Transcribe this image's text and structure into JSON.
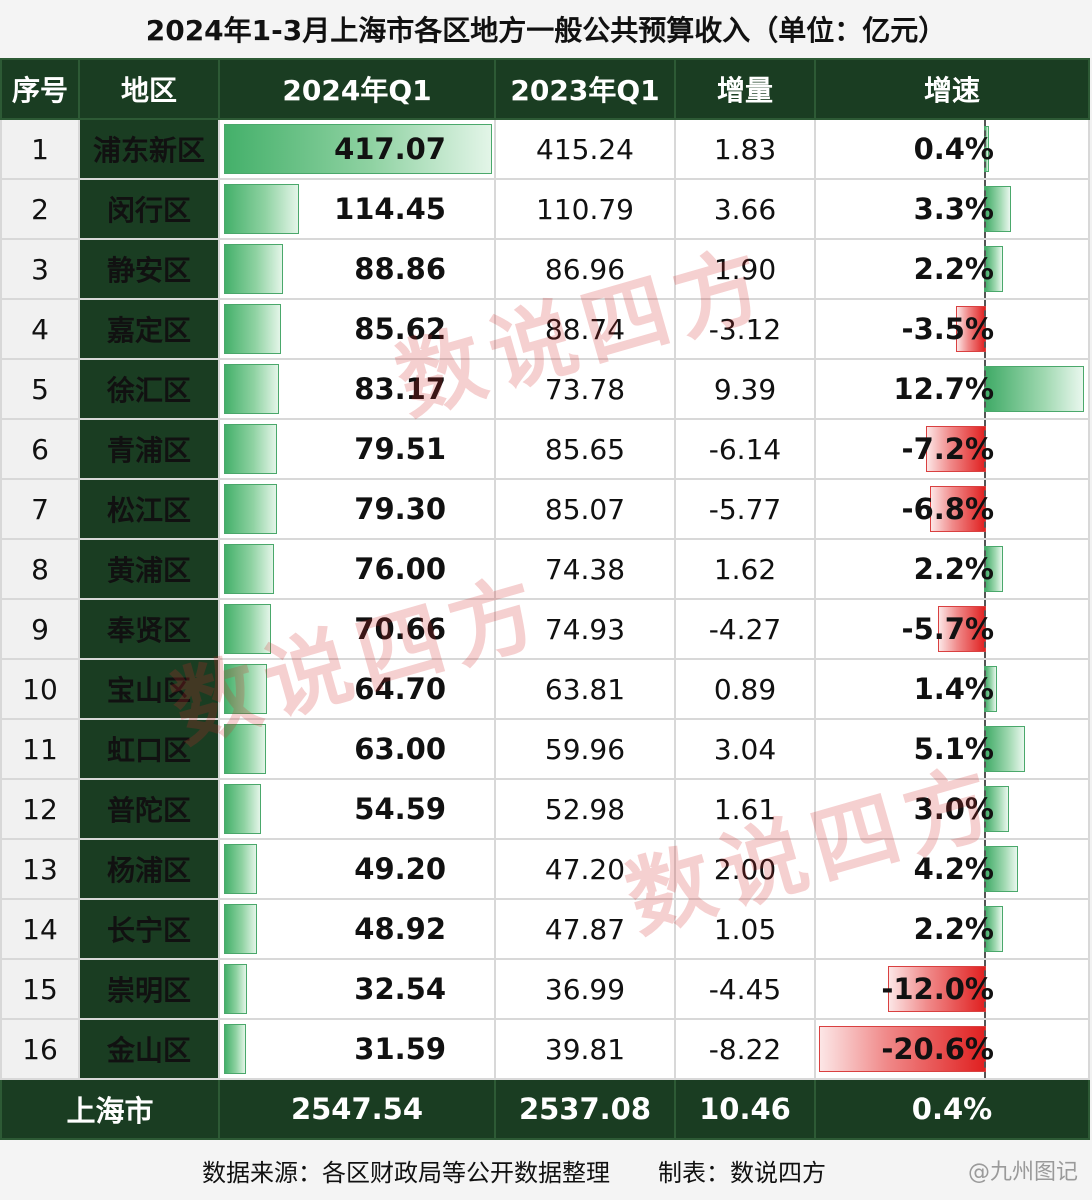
{
  "title": "2024年1-3月上海市各区地方一般公共预算收入（单位：亿元）",
  "headers": {
    "idx": "序号",
    "district": "地区",
    "q1_2024": "2024年Q1",
    "q1_2023": "2023年Q1",
    "increase": "增量",
    "growth": "增速"
  },
  "chart_data": {
    "type": "table",
    "unit": "亿元",
    "rows": [
      {
        "idx": "1",
        "district": "浦东新区",
        "q1_2024": 417.07,
        "q1_2024_text": "417.07",
        "q1_2023": "415.24",
        "increase": "1.83",
        "growth": 0.4,
        "growth_text": "0.4%"
      },
      {
        "idx": "2",
        "district": "闵行区",
        "q1_2024": 114.45,
        "q1_2024_text": "114.45",
        "q1_2023": "110.79",
        "increase": "3.66",
        "growth": 3.3,
        "growth_text": "3.3%"
      },
      {
        "idx": "3",
        "district": "静安区",
        "q1_2024": 88.86,
        "q1_2024_text": "88.86",
        "q1_2023": "86.96",
        "increase": "1.90",
        "growth": 2.2,
        "growth_text": "2.2%"
      },
      {
        "idx": "4",
        "district": "嘉定区",
        "q1_2024": 85.62,
        "q1_2024_text": "85.62",
        "q1_2023": "88.74",
        "increase": "-3.12",
        "growth": -3.5,
        "growth_text": "-3.5%"
      },
      {
        "idx": "5",
        "district": "徐汇区",
        "q1_2024": 83.17,
        "q1_2024_text": "83.17",
        "q1_2023": "73.78",
        "increase": "9.39",
        "growth": 12.7,
        "growth_text": "12.7%"
      },
      {
        "idx": "6",
        "district": "青浦区",
        "q1_2024": 79.51,
        "q1_2024_text": "79.51",
        "q1_2023": "85.65",
        "increase": "-6.14",
        "growth": -7.2,
        "growth_text": "-7.2%"
      },
      {
        "idx": "7",
        "district": "松江区",
        "q1_2024": 79.3,
        "q1_2024_text": "79.30",
        "q1_2023": "85.07",
        "increase": "-5.77",
        "growth": -6.8,
        "growth_text": "-6.8%"
      },
      {
        "idx": "8",
        "district": "黄浦区",
        "q1_2024": 76.0,
        "q1_2024_text": "76.00",
        "q1_2023": "74.38",
        "increase": "1.62",
        "growth": 2.2,
        "growth_text": "2.2%"
      },
      {
        "idx": "9",
        "district": "奉贤区",
        "q1_2024": 70.66,
        "q1_2024_text": "70.66",
        "q1_2023": "74.93",
        "increase": "-4.27",
        "growth": -5.7,
        "growth_text": "-5.7%"
      },
      {
        "idx": "10",
        "district": "宝山区",
        "q1_2024": 64.7,
        "q1_2024_text": "64.70",
        "q1_2023": "63.81",
        "increase": "0.89",
        "growth": 1.4,
        "growth_text": "1.4%"
      },
      {
        "idx": "11",
        "district": "虹口区",
        "q1_2024": 63.0,
        "q1_2024_text": "63.00",
        "q1_2023": "59.96",
        "increase": "3.04",
        "growth": 5.1,
        "growth_text": "5.1%"
      },
      {
        "idx": "12",
        "district": "普陀区",
        "q1_2024": 54.59,
        "q1_2024_text": "54.59",
        "q1_2023": "52.98",
        "increase": "1.61",
        "growth": 3.0,
        "growth_text": "3.0%"
      },
      {
        "idx": "13",
        "district": "杨浦区",
        "q1_2024": 49.2,
        "q1_2024_text": "49.20",
        "q1_2023": "47.20",
        "increase": "2.00",
        "growth": 4.2,
        "growth_text": "4.2%"
      },
      {
        "idx": "14",
        "district": "长宁区",
        "q1_2024": 48.92,
        "q1_2024_text": "48.92",
        "q1_2023": "47.87",
        "increase": "1.05",
        "growth": 2.2,
        "growth_text": "2.2%"
      },
      {
        "idx": "15",
        "district": "崇明区",
        "q1_2024": 32.54,
        "q1_2024_text": "32.54",
        "q1_2023": "36.99",
        "increase": "-4.45",
        "growth": -12.0,
        "growth_text": "-12.0%"
      },
      {
        "idx": "16",
        "district": "金山区",
        "q1_2024": 31.59,
        "q1_2024_text": "31.59",
        "q1_2023": "39.81",
        "increase": "-8.22",
        "growth": -20.6,
        "growth_text": "-20.6%"
      }
    ],
    "total": {
      "district": "上海市",
      "q1_2024": "2547.54",
      "q1_2023": "2537.08",
      "increase": "10.46",
      "growth": "0.4%"
    },
    "colors": {
      "positive": "#44b06a",
      "negative": "#e02020",
      "header_bg": "#1a3d22"
    }
  },
  "footer": {
    "source": "数据来源：各区财政局等公开数据整理",
    "maker": "制表：数说四方",
    "watermark": "@九州图记"
  },
  "watermarks": [
    "数说四方",
    "数说四方",
    "数说四方"
  ]
}
